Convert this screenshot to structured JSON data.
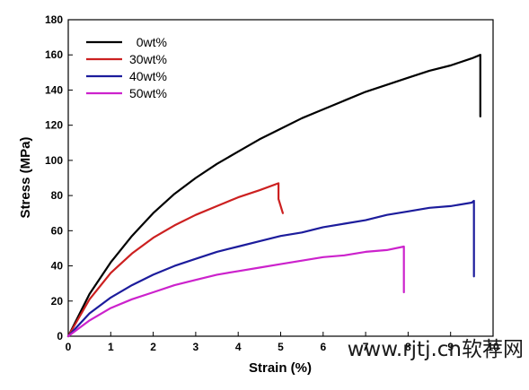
{
  "chart_data": {
    "type": "line",
    "title": "",
    "xlabel": "Strain (%)",
    "ylabel": "Stress (MPa)",
    "xlim": [
      0,
      10
    ],
    "ylim": [
      0,
      180
    ],
    "xticks": [
      0,
      1,
      2,
      3,
      4,
      5,
      6,
      7,
      8,
      9,
      10
    ],
    "yticks": [
      0,
      20,
      40,
      60,
      80,
      100,
      120,
      140,
      160,
      180
    ],
    "grid": false,
    "legend": "top-left",
    "series": [
      {
        "name": "0wt%",
        "color": "#000000",
        "x": [
          0,
          0.5,
          1,
          1.5,
          2,
          2.5,
          3,
          3.5,
          4,
          4.5,
          5,
          5.5,
          6,
          6.5,
          7,
          7.5,
          8,
          8.5,
          9,
          9.5,
          9.7,
          9.7
        ],
        "y": [
          0,
          24,
          42,
          57,
          70,
          81,
          90,
          98,
          105,
          112,
          118,
          124,
          129,
          134,
          139,
          143,
          147,
          151,
          154,
          158,
          160,
          125
        ]
      },
      {
        "name": "30wt%",
        "color": "#cc2020",
        "x": [
          0,
          0.5,
          1,
          1.5,
          2,
          2.5,
          3,
          3.5,
          4,
          4.5,
          4.95,
          4.95,
          5.05
        ],
        "y": [
          0,
          21,
          36,
          47,
          56,
          63,
          69,
          74,
          79,
          83,
          87,
          78,
          70
        ]
      },
      {
        "name": "40wt%",
        "color": "#1c1c9c",
        "x": [
          0,
          0.5,
          1,
          1.5,
          2,
          2.5,
          3,
          3.5,
          4,
          4.5,
          5,
          5.5,
          6,
          6.5,
          7,
          7.5,
          8,
          8.5,
          9,
          9.5,
          9.55,
          9.55
        ],
        "y": [
          0,
          13,
          22,
          29,
          35,
          40,
          44,
          48,
          51,
          54,
          57,
          59,
          62,
          64,
          66,
          69,
          71,
          73,
          74,
          76,
          77,
          34
        ]
      },
      {
        "name": "50wt%",
        "color": "#cc22cc",
        "x": [
          0,
          0.5,
          1,
          1.5,
          2,
          2.5,
          3,
          3.5,
          4,
          4.5,
          5,
          5.5,
          6,
          6.5,
          7,
          7.5,
          7.9,
          7.9
        ],
        "y": [
          0,
          9,
          16,
          21,
          25,
          29,
          32,
          35,
          37,
          39,
          41,
          43,
          45,
          46,
          48,
          49,
          51,
          25
        ]
      }
    ]
  },
  "watermark": "www.rjtj.cn软荐网"
}
